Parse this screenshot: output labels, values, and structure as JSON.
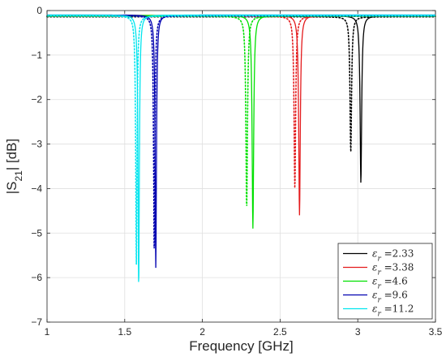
{
  "chart_data": {
    "type": "line",
    "xlabel": "Frequency [GHz]",
    "ylabel_main": "|S",
    "ylabel_sub": "21",
    "ylabel_tail": "| [dB]",
    "xlim": [
      1,
      3.5
    ],
    "ylim": [
      -7,
      0
    ],
    "xticks": [
      1,
      1.5,
      2,
      2.5,
      3,
      3.5
    ],
    "xtick_labels": [
      "1",
      "1.5",
      "2",
      "2.5",
      "3",
      "3.5"
    ],
    "yticks": [
      0,
      -1,
      -2,
      -3,
      -4,
      -5,
      -6,
      -7
    ],
    "ytick_labels": [
      "0",
      "−1",
      "−2",
      "−3",
      "−4",
      "−5",
      "−6",
      "−7"
    ],
    "grid": true,
    "legend_position": "bottom-right",
    "legend_symbol": "ε",
    "legend_subscript": "r",
    "series": [
      {
        "name": "2.33",
        "color": "#000000",
        "solid": {
          "f0": 3.02,
          "min": -3.88,
          "width": 0.006,
          "base": -0.12
        },
        "dotted": {
          "f0": 2.955,
          "min": -3.18,
          "width": 0.006,
          "base": -0.14
        }
      },
      {
        "name": "3.38",
        "color": "#e41a1c",
        "solid": {
          "f0": 2.625,
          "min": -4.6,
          "width": 0.006,
          "base": -0.11
        },
        "dotted": {
          "f0": 2.595,
          "min": -4.0,
          "width": 0.006,
          "base": -0.13
        }
      },
      {
        "name": "4.6",
        "color": "#00e000",
        "solid": {
          "f0": 2.325,
          "min": -4.9,
          "width": 0.006,
          "base": -0.11
        },
        "dotted": {
          "f0": 2.285,
          "min": -4.45,
          "width": 0.006,
          "base": -0.13
        }
      },
      {
        "name": "9.6",
        "color": "#0000b0",
        "solid": {
          "f0": 1.7,
          "min": -5.78,
          "width": 0.005,
          "base": -0.1
        },
        "dotted": {
          "f0": 1.69,
          "min": -5.45,
          "width": 0.005,
          "base": -0.12
        }
      },
      {
        "name": "11.2",
        "color": "#00e5ee",
        "solid": {
          "f0": 1.59,
          "min": -6.22,
          "width": 0.005,
          "base": -0.1
        },
        "dotted": {
          "f0": 1.575,
          "min": -5.7,
          "width": 0.005,
          "base": -0.12
        }
      }
    ]
  }
}
